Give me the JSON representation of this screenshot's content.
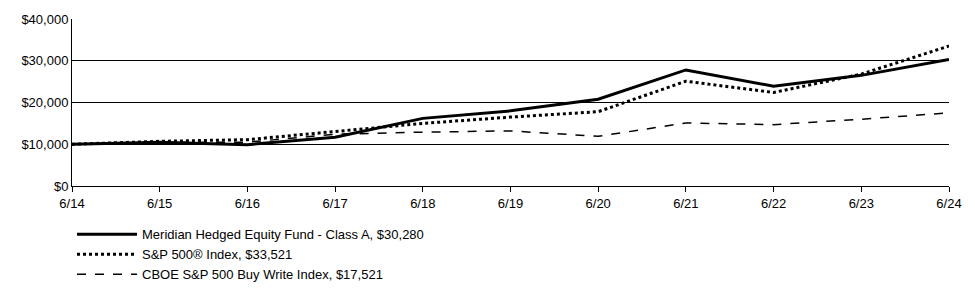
{
  "chart_data": {
    "type": "line",
    "categories": [
      "6/14",
      "6/15",
      "6/16",
      "6/17",
      "6/18",
      "6/19",
      "6/20",
      "6/21",
      "6/22",
      "6/23",
      "6/24"
    ],
    "series": [
      {
        "name": "Meridian Hedged Equity Fund - Class A, $30,280",
        "color": "#000000",
        "line_style": "solid",
        "values": [
          10000,
          10500,
          9900,
          11700,
          16200,
          18000,
          20800,
          27800,
          23900,
          26500,
          30280
        ]
      },
      {
        "name": "S&P 500® Index, $33,521",
        "color": "#000000",
        "line_style": "dot",
        "values": [
          10000,
          10700,
          11100,
          13100,
          15000,
          16500,
          17800,
          25100,
          22400,
          26800,
          33521
        ]
      },
      {
        "name": "CBOE S&P 500 Buy Write Index, $17,521",
        "color": "#000000",
        "line_style": "dash",
        "values": [
          10000,
          10500,
          10500,
          12400,
          12900,
          13200,
          11900,
          15100,
          14700,
          16000,
          17521
        ]
      }
    ],
    "ylim": [
      0,
      40000
    ],
    "yticks": [
      {
        "value": 0,
        "label": "$0"
      },
      {
        "value": 10000,
        "label": "$10,000"
      },
      {
        "value": 20000,
        "label": "$20,000"
      },
      {
        "value": 30000,
        "label": "$30,000"
      },
      {
        "value": 40000,
        "label": "$40,000"
      }
    ],
    "grid": true,
    "legend": "bottom"
  }
}
